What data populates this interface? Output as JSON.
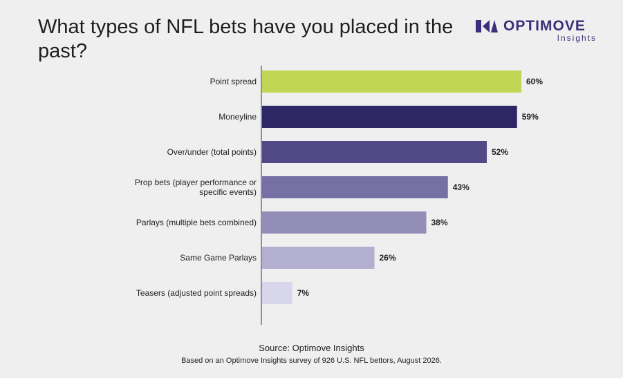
{
  "title": "What types of NFL bets have you placed in the past?",
  "brand": {
    "name": "OPTIMOVE",
    "sub": "Insights",
    "color": "#3a2f7a"
  },
  "footer": {
    "source": "Source: Optimove Insights",
    "note": "Based on an Optimove Insights survey of 926 U.S. NFL bettors, August 2026."
  },
  "chart_data": {
    "type": "bar",
    "orientation": "horizontal",
    "title": "What types of NFL bets have you placed in the past?",
    "xlabel": "",
    "ylabel": "",
    "xlim": [
      0,
      100
    ],
    "grid": false,
    "categories": [
      [
        "Point spread"
      ],
      [
        "Moneyline"
      ],
      [
        "Over/under (total points)"
      ],
      [
        "Prop bets (player performance or",
        "specific events)"
      ],
      [
        "Parlays (multiple bets combined)"
      ],
      [
        "Same Game Parlays"
      ],
      [
        "Teasers (adjusted point spreads)"
      ]
    ],
    "values": [
      60,
      59,
      52,
      43,
      38,
      26,
      7
    ],
    "value_labels": [
      "60%",
      "59%",
      "52%",
      "43%",
      "38%",
      "26%",
      "7%"
    ],
    "colors": [
      "#c2d656",
      "#2e2766",
      "#524a86",
      "#7670a4",
      "#928eb8",
      "#b3afd0",
      "#d8d6ea"
    ]
  }
}
